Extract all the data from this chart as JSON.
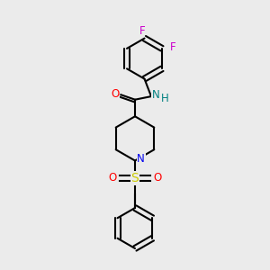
{
  "bg_color": "#ebebeb",
  "bond_color": "#000000",
  "bond_width": 1.5,
  "atom_colors": {
    "F": "#cc00cc",
    "O": "#ff0000",
    "N_amide": "#008080",
    "H": "#008080",
    "N_pip": "#0000ee",
    "S": "#cccc00",
    "C": "#000000"
  },
  "font_size": 8.5,
  "figsize": [
    3.0,
    3.0
  ],
  "dpi": 100
}
